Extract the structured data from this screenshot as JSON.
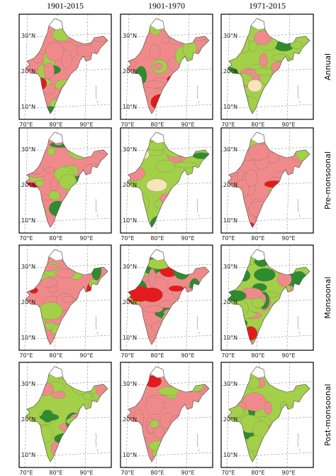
{
  "columns": [
    "1901-2015",
    "1901-1970",
    "1971-2015"
  ],
  "rows": [
    "Annual",
    "Pre-monsoonal",
    "Monsoonal",
    "Post-monsoonal"
  ],
  "lat_labels": [
    "30°N",
    "20°N",
    "10°N"
  ],
  "lon_labels": [
    "70°E",
    "80°E",
    "90°E"
  ]
}
